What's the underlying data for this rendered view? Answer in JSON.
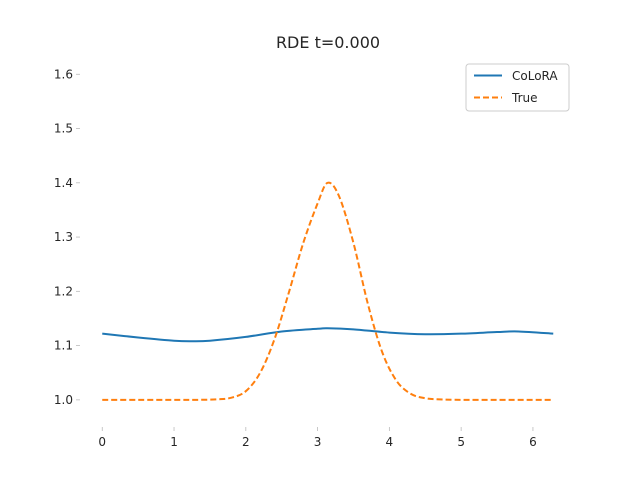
{
  "chart_data": {
    "type": "line",
    "title": "RDE t=0.000",
    "xlabel": "",
    "ylabel": "",
    "xlim": [
      -0.31,
      6.6
    ],
    "ylim": [
      0.95,
      1.63
    ],
    "xticks": [
      0,
      1,
      2,
      3,
      4,
      5,
      6
    ],
    "yticks": [
      1.0,
      1.1,
      1.2,
      1.3,
      1.4,
      1.5,
      1.6
    ],
    "ytick_labels": [
      "1.0",
      "1.1",
      "1.2",
      "1.3",
      "1.4",
      "1.5",
      "1.6"
    ],
    "grid": false,
    "legend_position": "top-right",
    "series": [
      {
        "name": "CoLoRA",
        "color": "#1f77b4",
        "style": "solid",
        "x": [
          0,
          0.5,
          1.0,
          1.25,
          1.5,
          2.0,
          2.5,
          3.0,
          3.14,
          3.5,
          4.0,
          4.5,
          5.0,
          5.5,
          5.8,
          6.283
        ],
        "y": [
          1.122,
          1.115,
          1.109,
          1.108,
          1.109,
          1.116,
          1.126,
          1.131,
          1.132,
          1.13,
          1.124,
          1.121,
          1.122,
          1.125,
          1.126,
          1.122
        ]
      },
      {
        "name": "True",
        "color": "#ff7f0e",
        "style": "dashed",
        "x": [
          0,
          0.5,
          1.0,
          1.3,
          1.6,
          1.8,
          2.0,
          2.2,
          2.4,
          2.6,
          2.8,
          3.0,
          3.14,
          3.3,
          3.5,
          3.7,
          3.9,
          4.1,
          4.3,
          4.5,
          4.7,
          5.0,
          5.5,
          6.0,
          6.283
        ],
        "y": [
          1.0,
          1.0,
          1.0,
          1.0,
          1.001,
          1.004,
          1.016,
          1.05,
          1.112,
          1.198,
          1.289,
          1.362,
          1.4,
          1.375,
          1.289,
          1.177,
          1.088,
          1.035,
          1.011,
          1.003,
          1.001,
          1.0,
          1.0,
          1.0,
          1.0
        ]
      }
    ]
  }
}
